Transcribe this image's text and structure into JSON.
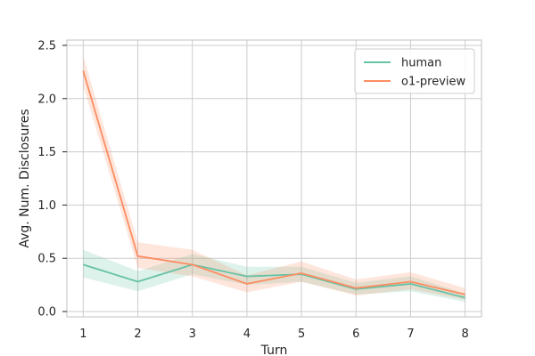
{
  "chart_data": {
    "type": "line",
    "title": "",
    "xlabel": "Turn",
    "ylabel": "Avg. Num. Disclosures",
    "x": [
      1,
      2,
      3,
      4,
      5,
      6,
      7,
      8
    ],
    "xlim": [
      0.7,
      8.3
    ],
    "ylim": [
      -0.05,
      2.55
    ],
    "xticks": [
      "1",
      "2",
      "3",
      "4",
      "5",
      "6",
      "7",
      "8"
    ],
    "yticks": [
      "0.0",
      "0.5",
      "1.0",
      "1.5",
      "2.0",
      "2.5"
    ],
    "grid": true,
    "legend_position": "top-right",
    "series": [
      {
        "name": "human",
        "color": "#66c2a5",
        "values": [
          0.44,
          0.28,
          0.44,
          0.33,
          0.35,
          0.21,
          0.26,
          0.13
        ],
        "ci_low": [
          0.32,
          0.19,
          0.35,
          0.25,
          0.28,
          0.16,
          0.19,
          0.09
        ],
        "ci_high": [
          0.58,
          0.38,
          0.54,
          0.42,
          0.42,
          0.27,
          0.33,
          0.17
        ]
      },
      {
        "name": "o1-preview",
        "color": "#fc8d62",
        "values": [
          2.26,
          0.52,
          0.44,
          0.26,
          0.36,
          0.22,
          0.28,
          0.16
        ],
        "ci_low": [
          2.12,
          0.41,
          0.33,
          0.18,
          0.28,
          0.15,
          0.21,
          0.11
        ],
        "ci_high": [
          2.4,
          0.65,
          0.58,
          0.34,
          0.47,
          0.3,
          0.37,
          0.22
        ]
      }
    ]
  }
}
